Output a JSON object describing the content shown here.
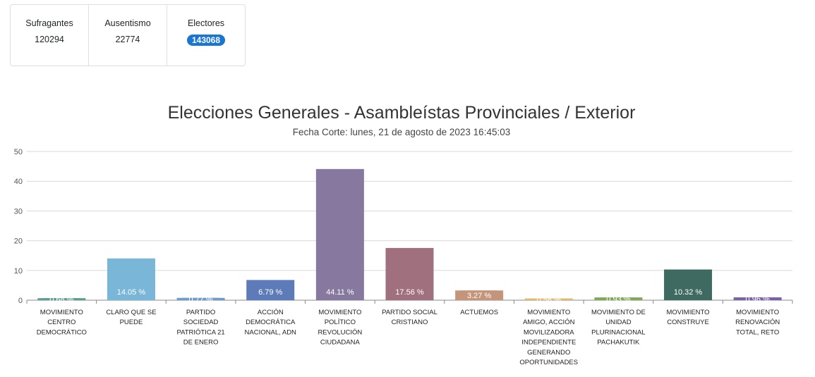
{
  "stats": {
    "sufragantes": {
      "label": "Sufragantes",
      "value": "120294"
    },
    "ausentismo": {
      "label": "Ausentismo",
      "value": "22774"
    },
    "electores": {
      "label": "Electores",
      "value": "143068",
      "badge_color": "#1976d2"
    }
  },
  "chart_data": {
    "type": "bar",
    "title": "Elecciones Generales - Asambleístas Provinciales / Exterior",
    "subtitle": "Fecha Corte: lunes, 21 de agosto de 2023 16:45:03",
    "ylim": [
      0,
      50
    ],
    "yticks": [
      0,
      10,
      20,
      30,
      40,
      50
    ],
    "grid": true,
    "categories": [
      [
        "MOVIMIENTO",
        "CENTRO",
        "DEMOCRÁTICO"
      ],
      [
        "CLARO QUE SE",
        "PUEDE"
      ],
      [
        "PARTIDO",
        "SOCIEDAD",
        "PATRIÓTICA 21",
        "DE ENERO"
      ],
      [
        "ACCIÓN",
        "DEMOCRÁTICA",
        "NACIONAL, ADN"
      ],
      [
        "MOVIMIENTO",
        "POLÍTICO",
        "REVOLUCIÓN",
        "CIUDADANA"
      ],
      [
        "PARTIDO SOCIAL",
        "CRISTIANO"
      ],
      [
        "ACTUEMOS"
      ],
      [
        "MOVIMIENTO",
        "AMIGO, ACCIÓN",
        "MOVILIZADORA",
        "INDEPENDIENTE",
        "GENERANDO",
        "OPORTUNIDADES"
      ],
      [
        "MOVIMIENTO DE",
        "UNIDAD",
        "PLURINACIONAL",
        "PACHAKUTIK"
      ],
      [
        "MOVIMIENTO",
        "CONSTRUYE"
      ],
      [
        "MOVIMIENTO",
        "RENOVACIÓN",
        "TOTAL, RETO"
      ]
    ],
    "values": [
      0.68,
      14.05,
      0.77,
      6.79,
      44.11,
      17.56,
      3.27,
      0.58,
      0.93,
      10.32,
      0.96
    ],
    "labels": [
      "0.68 %",
      "14.05 %",
      "0.77 %",
      "6.79 %",
      "44.11 %",
      "17.56 %",
      "3.27 %",
      "0.58 %",
      "0.93 %",
      "10.32 %",
      "0.96 %"
    ],
    "colors": [
      "#5a9e94",
      "#7ab6d8",
      "#6d9cc8",
      "#5c7bb8",
      "#86789e",
      "#a0707e",
      "#c4957a",
      "#e2b86a",
      "#82a85a",
      "#3f6a62",
      "#7a62a6"
    ]
  }
}
